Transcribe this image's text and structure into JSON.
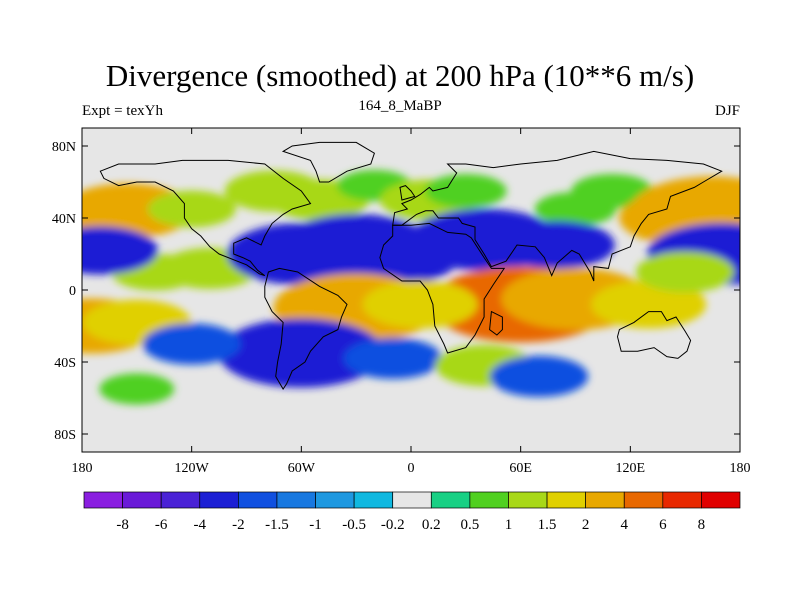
{
  "chart_data": {
    "type": "heatmap",
    "title": "Divergence (smoothed) at 200 hPa (10**6 m/s)",
    "subtitle": "164_8_MaBP",
    "left_annotation": "Expt = texYh",
    "right_annotation": "DJF",
    "xlim": [
      -180,
      180
    ],
    "ylim": [
      -90,
      90
    ],
    "x_ticks": [
      {
        "value": -180,
        "label": "180"
      },
      {
        "value": -120,
        "label": "120W"
      },
      {
        "value": -60,
        "label": "60W"
      },
      {
        "value": 0,
        "label": "0"
      },
      {
        "value": 60,
        "label": "60E"
      },
      {
        "value": 120,
        "label": "120E"
      },
      {
        "value": 180,
        "label": "180"
      }
    ],
    "y_ticks": [
      {
        "value": 80,
        "label": "80N"
      },
      {
        "value": 40,
        "label": "40N"
      },
      {
        "value": 0,
        "label": "0"
      },
      {
        "value": -40,
        "label": "40S"
      },
      {
        "value": -80,
        "label": "80S"
      }
    ],
    "colorbar": {
      "labels": [
        "-8",
        "-6",
        "-4",
        "-2",
        "-1.5",
        "-1",
        "-0.5",
        "-0.2",
        "0.2",
        "0.5",
        "1",
        "1.5",
        "2",
        "4",
        "6",
        "8"
      ],
      "colors": [
        "#8a1ee0",
        "#6a1ad8",
        "#4a22d6",
        "#1c1fd4",
        "#1050e0",
        "#1878e0",
        "#1e98e0",
        "#10b8e0",
        "#e6e6e6",
        "#18d084",
        "#50d020",
        "#a8d818",
        "#e0d000",
        "#e8a800",
        "#e86800",
        "#e82800",
        "#e00000"
      ]
    },
    "fields": [
      {
        "lon": -170,
        "lat": 40,
        "value": 1.5
      },
      {
        "lon": -155,
        "lat": 44,
        "value": 2.5
      },
      {
        "lon": -120,
        "lat": 45,
        "value": 1.2
      },
      {
        "lon": -75,
        "lat": 55,
        "value": 1.5
      },
      {
        "lon": -50,
        "lat": 50,
        "value": 1.5
      },
      {
        "lon": -20,
        "lat": 58,
        "value": 0.8
      },
      {
        "lon": 10,
        "lat": 50,
        "value": 1.5
      },
      {
        "lon": 30,
        "lat": 55,
        "value": 1.0
      },
      {
        "lon": 90,
        "lat": 45,
        "value": 1.0
      },
      {
        "lon": 110,
        "lat": 55,
        "value": 1.0
      },
      {
        "lon": 150,
        "lat": 40,
        "value": 2.5
      },
      {
        "lon": 165,
        "lat": 44,
        "value": 3.5
      },
      {
        "lon": -140,
        "lat": 10,
        "value": 1.2
      },
      {
        "lon": -110,
        "lat": 12,
        "value": 1.5
      },
      {
        "lon": -60,
        "lat": 20,
        "value": -3.0
      },
      {
        "lon": -30,
        "lat": 25,
        "value": -3.0
      },
      {
        "lon": -10,
        "lat": 18,
        "value": -2.5
      },
      {
        "lon": 40,
        "lat": 28,
        "value": -3.0
      },
      {
        "lon": 80,
        "lat": 25,
        "value": -2.0
      },
      {
        "lon": 170,
        "lat": 20,
        "value": -3.0
      },
      {
        "lon": -170,
        "lat": 22,
        "value": -2.0
      },
      {
        "lon": 60,
        "lat": -8,
        "value": 4.5
      },
      {
        "lon": 90,
        "lat": -5,
        "value": 3.0
      },
      {
        "lon": 130,
        "lat": -8,
        "value": 2.0
      },
      {
        "lon": 150,
        "lat": 10,
        "value": 1.5
      },
      {
        "lon": -30,
        "lat": -10,
        "value": 3.5
      },
      {
        "lon": 5,
        "lat": -8,
        "value": 2.0
      },
      {
        "lon": -175,
        "lat": -20,
        "value": 2.5
      },
      {
        "lon": -150,
        "lat": -18,
        "value": 1.8
      },
      {
        "lon": -60,
        "lat": -35,
        "value": -3.5
      },
      {
        "lon": -10,
        "lat": -38,
        "value": -1.5
      },
      {
        "lon": 40,
        "lat": -42,
        "value": 1.5
      },
      {
        "lon": 70,
        "lat": -48,
        "value": -1.5
      },
      {
        "lon": -120,
        "lat": -30,
        "value": -1.5
      },
      {
        "lon": -150,
        "lat": -55,
        "value": 0.8
      }
    ]
  }
}
